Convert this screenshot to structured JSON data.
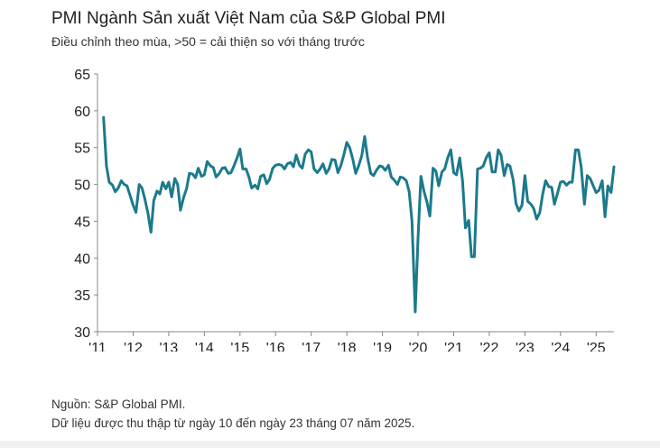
{
  "header": {
    "title": "PMI Ngành Sản xuất Việt Nam của S&P Global PMI",
    "subtitle": "Điều chỉnh theo mùa, >50 = cải thiện so với tháng trước"
  },
  "footer": {
    "source": "Nguồn: S&P Global PMI.",
    "note": "Dữ liệu được thu thập từ ngày 10 đến ngày 23 tháng 07 năm 2025."
  },
  "colors": {
    "line": "#1b7a8c",
    "axis": "#888888",
    "text": "#222222"
  },
  "chart_data": {
    "type": "line",
    "title": "PMI Ngành Sản xuất Việt Nam của S&P Global PMI",
    "xlabel": "",
    "ylabel": "",
    "ylim": [
      30,
      65
    ],
    "yticks": [
      30,
      35,
      40,
      45,
      50,
      55,
      60,
      65
    ],
    "xlim": [
      2011.0,
      2025.5
    ],
    "xticks": [
      2011,
      2012,
      2013,
      2014,
      2015,
      2016,
      2017,
      2018,
      2019,
      2020,
      2021,
      2022,
      2023,
      2024,
      2025
    ],
    "xtick_labels": [
      "'11",
      "'12",
      "'13",
      "'14",
      "'15",
      "'16",
      "'17",
      "'18",
      "'19",
      "'20",
      "'21",
      "'22",
      "'23",
      "'24",
      "'25"
    ],
    "grid": false,
    "series": [
      {
        "name": "PMI",
        "x": [
          2011.17,
          2011.25,
          2011.33,
          2011.42,
          2011.5,
          2011.58,
          2011.67,
          2011.75,
          2011.83,
          2011.92,
          2012.0,
          2012.08,
          2012.17,
          2012.25,
          2012.33,
          2012.42,
          2012.5,
          2012.58,
          2012.67,
          2012.75,
          2012.83,
          2012.92,
          2013.0,
          2013.08,
          2013.17,
          2013.25,
          2013.33,
          2013.42,
          2013.5,
          2013.58,
          2013.67,
          2013.75,
          2013.83,
          2013.92,
          2014.0,
          2014.08,
          2014.17,
          2014.25,
          2014.33,
          2014.42,
          2014.5,
          2014.58,
          2014.67,
          2014.75,
          2014.83,
          2014.92,
          2015.0,
          2015.08,
          2015.17,
          2015.25,
          2015.33,
          2015.42,
          2015.5,
          2015.58,
          2015.67,
          2015.75,
          2015.83,
          2015.92,
          2016.0,
          2016.08,
          2016.17,
          2016.25,
          2016.33,
          2016.42,
          2016.5,
          2016.58,
          2016.67,
          2016.75,
          2016.83,
          2016.92,
          2017.0,
          2017.08,
          2017.17,
          2017.25,
          2017.33,
          2017.42,
          2017.5,
          2017.58,
          2017.67,
          2017.75,
          2017.83,
          2017.92,
          2018.0,
          2018.08,
          2018.17,
          2018.25,
          2018.33,
          2018.42,
          2018.5,
          2018.58,
          2018.67,
          2018.75,
          2018.83,
          2018.92,
          2019.0,
          2019.08,
          2019.17,
          2019.25,
          2019.33,
          2019.42,
          2019.5,
          2019.58,
          2019.67,
          2019.75,
          2019.83,
          2019.92,
          2020.0,
          2020.08,
          2020.17,
          2020.25,
          2020.33,
          2020.42,
          2020.5,
          2020.58,
          2020.67,
          2020.75,
          2020.83,
          2020.92,
          2021.0,
          2021.08,
          2021.17,
          2021.25,
          2021.33,
          2021.42,
          2021.5,
          2021.58,
          2021.67,
          2021.75,
          2021.83,
          2021.92,
          2022.0,
          2022.08,
          2022.17,
          2022.25,
          2022.33,
          2022.42,
          2022.5,
          2022.58,
          2022.67,
          2022.75,
          2022.83,
          2022.92,
          2023.0,
          2023.08,
          2023.17,
          2023.25,
          2023.33,
          2023.42,
          2023.5,
          2023.58,
          2023.67,
          2023.75,
          2023.83,
          2023.92,
          2024.0,
          2024.08,
          2024.17,
          2024.25,
          2024.33,
          2024.42,
          2024.5,
          2024.58,
          2024.67,
          2024.75,
          2024.83,
          2024.92,
          2025.0,
          2025.08,
          2025.17,
          2025.25,
          2025.33,
          2025.42,
          2025.5
        ],
        "values": [
          59.1,
          52.5,
          50.3,
          49.9,
          49.0,
          49.5,
          50.5,
          50.0,
          49.8,
          48.4,
          47.2,
          46.2,
          50.0,
          49.5,
          48.0,
          46.0,
          43.5,
          47.8,
          49.1,
          48.7,
          50.3,
          49.4,
          50.3,
          48.3,
          50.8,
          50.0,
          46.5,
          48.3,
          49.4,
          51.5,
          51.4,
          50.9,
          52.2,
          51.1,
          51.3,
          53.1,
          52.5,
          52.3,
          51.0,
          51.5,
          52.2,
          52.3,
          51.5,
          51.6,
          52.5,
          53.6,
          54.8,
          52.1,
          52.1,
          51.0,
          49.5,
          49.9,
          49.4,
          51.1,
          51.3,
          50.1,
          50.7,
          52.2,
          52.6,
          52.7,
          52.6,
          52.1,
          52.8,
          53.0,
          52.4,
          54.0,
          52.6,
          52.2,
          54.1,
          54.7,
          54.4,
          52.1,
          51.6,
          52.1,
          52.8,
          51.5,
          52.1,
          53.4,
          53.3,
          51.6,
          52.5,
          54.1,
          55.7,
          55.0,
          53.4,
          51.5,
          52.5,
          53.9,
          56.5,
          53.7,
          51.5,
          51.2,
          51.9,
          52.5,
          52.4,
          51.9,
          52.6,
          51.0,
          50.6,
          50.0,
          51.0,
          50.9,
          50.5,
          49.0,
          45.0,
          32.7,
          42.7,
          51.1,
          49.0,
          47.6,
          45.7,
          52.2,
          51.8,
          49.8,
          51.7,
          52.1,
          53.6,
          54.7,
          51.6,
          51.3,
          53.6,
          50.5,
          44.1,
          45.1,
          40.2,
          40.2,
          52.1,
          52.2,
          52.5,
          53.7,
          54.3,
          51.7,
          51.7,
          54.7,
          54.0,
          51.2,
          52.7,
          52.5,
          50.6,
          47.4,
          46.4,
          47.2,
          51.2,
          47.7,
          47.3,
          46.7,
          45.3,
          46.2,
          48.7,
          50.5,
          49.7,
          49.6,
          47.3,
          48.9,
          50.3,
          50.4,
          49.9,
          50.3,
          50.3,
          54.7,
          54.7,
          52.4,
          47.3,
          51.2,
          50.8,
          49.8,
          48.9,
          49.2,
          50.5,
          45.6,
          49.8,
          48.9,
          52.4
        ]
      }
    ]
  }
}
